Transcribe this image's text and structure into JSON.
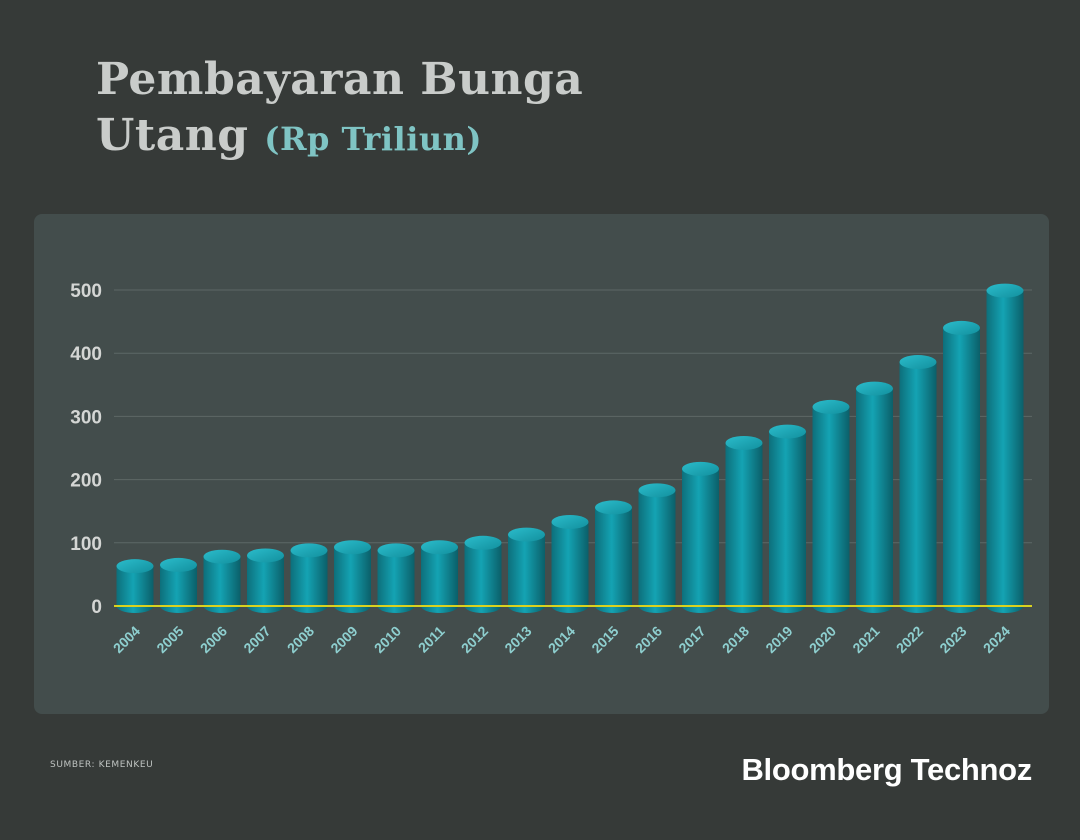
{
  "header": {
    "title_line1": "Pembayaran Bunga",
    "title_line2": "Utang",
    "title_unit": "(Rp Triliun)"
  },
  "footer": {
    "source": "SUMBER: KEMENKEU",
    "brand": "Bloomberg Technoz"
  },
  "colors": {
    "background": "#363a38",
    "panel": "#434d4c",
    "bar": "#14a3b3",
    "baseline": "#d9d21f",
    "tick_label": "#d4d6d4",
    "category_label": "#8ecfcf"
  },
  "chart_data": {
    "type": "bar",
    "title": "Pembayaran Bunga Utang (Rp Triliun)",
    "categories": [
      "2004",
      "2005",
      "2006",
      "2007",
      "2008",
      "2009",
      "2010",
      "2011",
      "2012",
      "2013",
      "2014",
      "2015",
      "2016",
      "2017",
      "2018",
      "2019",
      "2020",
      "2021",
      "2022",
      "2023",
      "2024"
    ],
    "values": [
      63,
      65,
      78,
      80,
      88,
      93,
      88,
      93,
      100,
      113,
      133,
      156,
      183,
      217,
      258,
      276,
      315,
      344,
      386,
      440,
      499
    ],
    "y_ticks": [
      "0",
      "100",
      "200",
      "300",
      "400",
      "500"
    ],
    "ylim": [
      0,
      550
    ],
    "xlabel": "",
    "ylabel": "",
    "grid": true
  }
}
